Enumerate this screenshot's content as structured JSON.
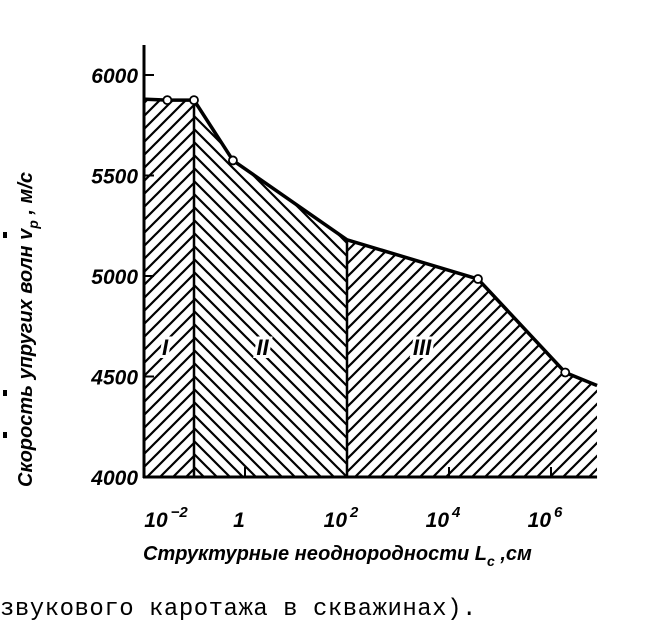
{
  "chart_data": {
    "type": "area",
    "xlabel": "Структурные неоднородности L_c ,см",
    "xlabel_main": "Структурные неоднородности L",
    "xlabel_sub": "c",
    "xlabel_unit": " ,см",
    "ylabel": "Скорость упругих волн v_p , м/с",
    "ylabel_main": "Скорость упругих волн v",
    "ylabel_sub": "p",
    "ylabel_unit": " , м/с",
    "x_scale": "log",
    "xlim": [
      0.01,
      8000000
    ],
    "ylim": [
      4000,
      6100
    ],
    "x_ticks": [
      {
        "value": 0.01,
        "base": "10",
        "exp": "−2"
      },
      {
        "value": 1,
        "base": "1",
        "exp": ""
      },
      {
        "value": 100,
        "base": "10",
        "exp": "2"
      },
      {
        "value": 10000,
        "base": "10",
        "exp": "4"
      },
      {
        "value": 1000000,
        "base": "10",
        "exp": "6"
      }
    ],
    "y_ticks": [
      "4000",
      "4500",
      "5000",
      "5500",
      "6000"
    ],
    "series": [
      {
        "x": [
          0.01,
          0.03,
          0.1,
          0.58,
          100,
          37000,
          1900000,
          8000000
        ],
        "y": [
          5880,
          5875,
          5875,
          5575,
          5180,
          4985,
          4520,
          4455
        ],
        "markers": [
          false,
          true,
          true,
          true,
          false,
          true,
          true,
          false
        ]
      }
    ],
    "regions": [
      {
        "label": "I",
        "from": 0.01,
        "to": 0.1,
        "hatch": "forward"
      },
      {
        "label": "II",
        "from": 0.1,
        "to": 100,
        "hatch": "backward"
      },
      {
        "label": "III",
        "from": 100,
        "to": 8000000,
        "hatch": "forward"
      }
    ],
    "grid": false,
    "colors": {
      "ink": "#000000",
      "paper": "#ffffff"
    }
  },
  "caption_fragment": "звукового каротажа в скважинах)."
}
